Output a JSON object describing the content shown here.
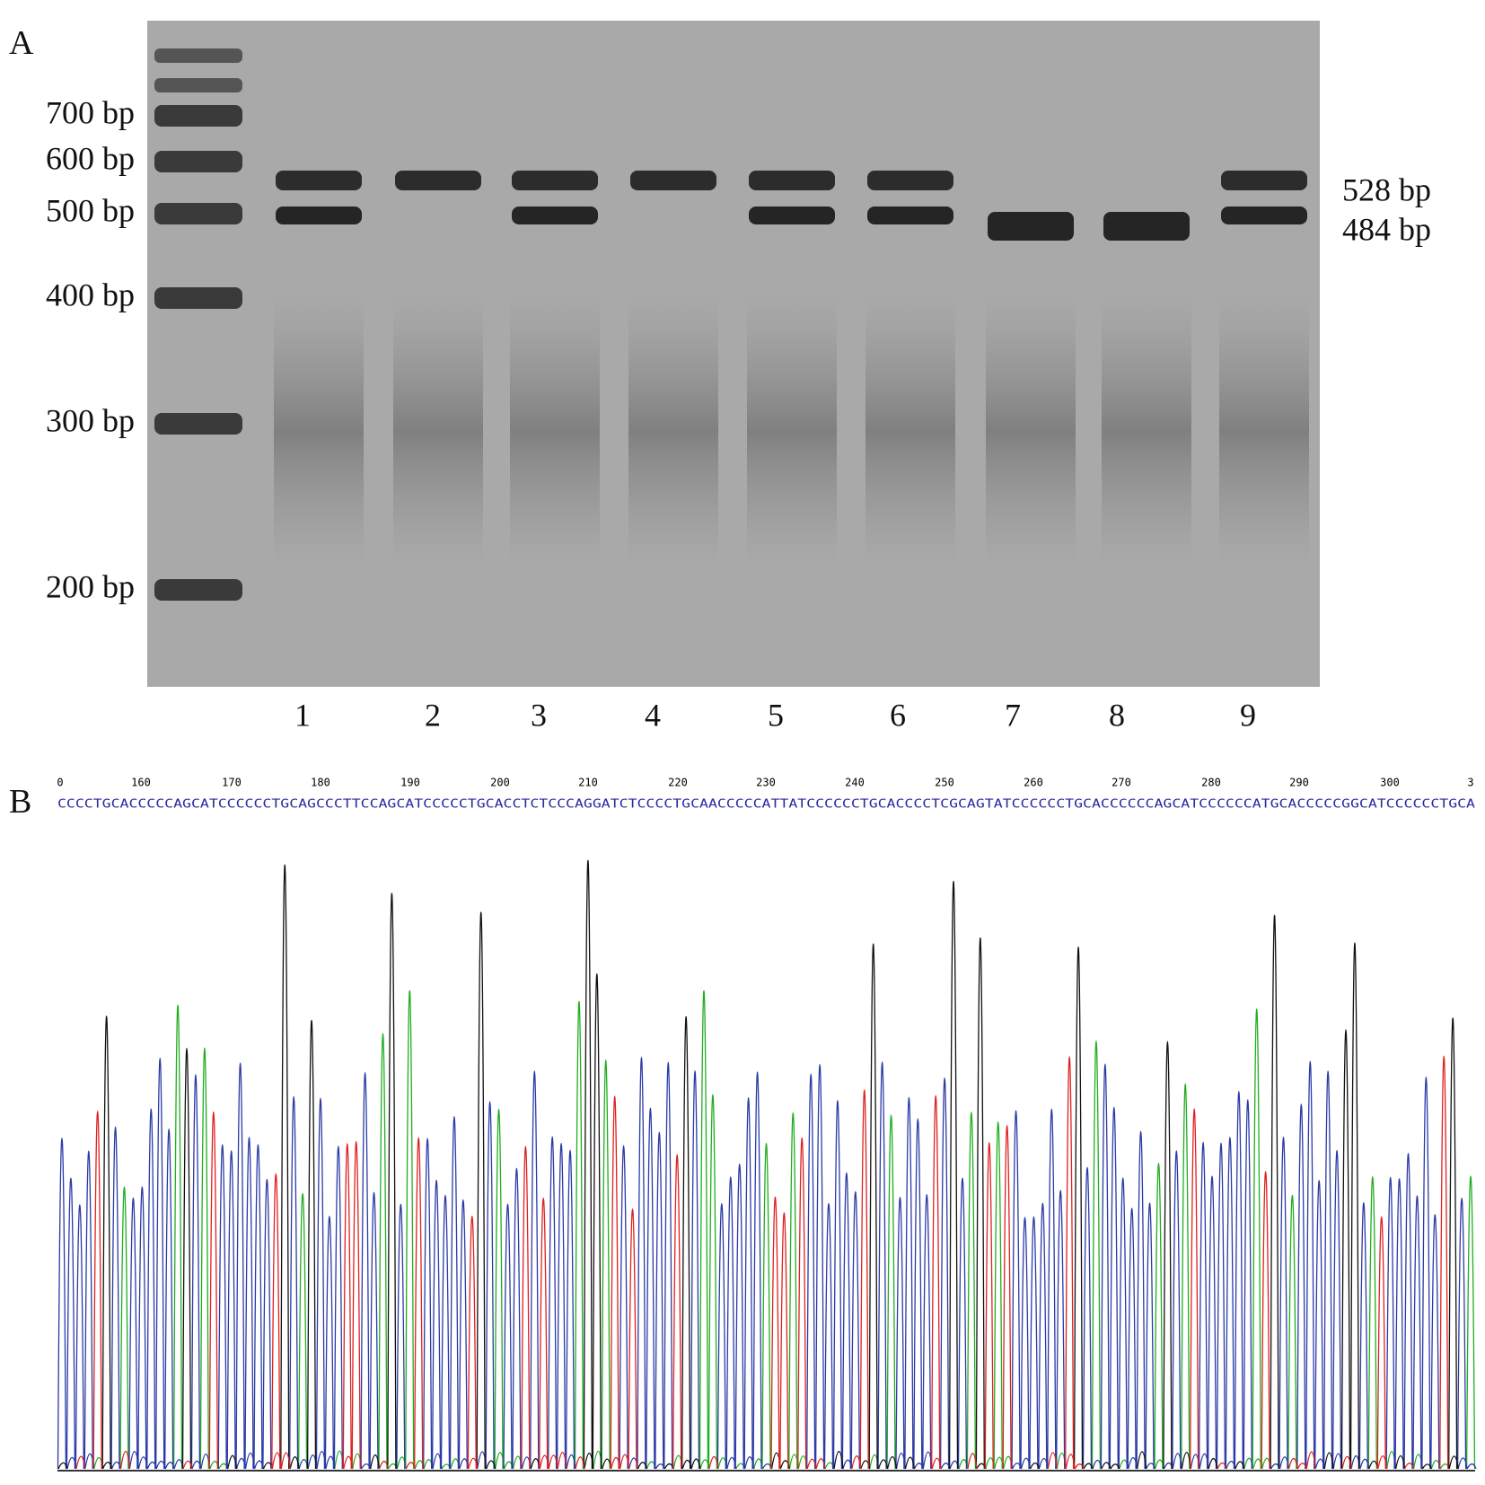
{
  "panel_a": {
    "label": "A",
    "ladder_labels": [
      "700 bp",
      "600 bp",
      "500 bp",
      "400 bp",
      "300 bp",
      "200 bp"
    ],
    "band_labels": [
      "528 bp",
      "484 bp"
    ],
    "lanes": [
      "1",
      "2",
      "3",
      "4",
      "5",
      "6",
      "7",
      "8",
      "9"
    ]
  },
  "panel_b": {
    "label": "B",
    "ruler": [
      "0",
      "160",
      "170",
      "180",
      "190",
      "200",
      "210",
      "220",
      "230",
      "240",
      "250",
      "260",
      "270",
      "280",
      "290",
      "300",
      "3"
    ],
    "sequence": "CCCCTGCACCCCCAGCATCCCCCCTGCAGCCCTTCCAGCATCCCCCTGCACCTCTCCCAGGATCTCCCCTGCAACCCCCATTATCCCCCCTGCACCCCTCGCAGTATCCCCCCTGCACCCCCCAGCATCCCCCCATGCACCCCCGGCATCCCCCCTGCA"
  }
}
